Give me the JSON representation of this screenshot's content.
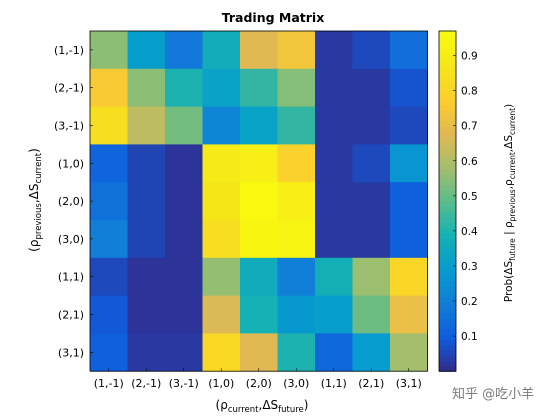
{
  "chart_data": {
    "type": "heatmap",
    "title": "Trading Matrix",
    "xlabel_prefix": "(ρ",
    "xlabel_sub1": "current",
    "xlabel_mid": ",ΔS",
    "xlabel_sub2": "future",
    "xlabel_suffix": ")",
    "ylabel_prefix": "(ρ",
    "ylabel_sub1": "previous",
    "ylabel_mid": ",ΔS",
    "ylabel_sub2": "current",
    "ylabel_suffix": ")",
    "colorbar_label_prefix": "Prob(ΔS",
    "colorbar_label_sub1": "future",
    "colorbar_label_mid1": " | ρ",
    "colorbar_label_sub2": "previous",
    "colorbar_label_mid2": ",ρ",
    "colorbar_label_sub3": "current",
    "colorbar_label_mid3": ",ΔS",
    "colorbar_label_sub4": "current",
    "colorbar_label_suffix": ")",
    "x_categories": [
      "(1,-1)",
      "(2,-1)",
      "(3,-1)",
      "(1,0)",
      "(2,0)",
      "(3,0)",
      "(1,1)",
      "(2,1)",
      "(3,1)"
    ],
    "y_categories": [
      "(1,-1)",
      "(2,-1)",
      "(3,-1)",
      "(1,0)",
      "(2,0)",
      "(3,0)",
      "(1,1)",
      "(2,1)",
      "(3,1)"
    ],
    "values": [
      [
        0.55,
        0.3,
        0.18,
        0.37,
        0.68,
        0.74,
        0.03,
        0.06,
        0.15
      ],
      [
        0.76,
        0.55,
        0.4,
        0.32,
        0.43,
        0.54,
        0.03,
        0.03,
        0.08
      ],
      [
        0.84,
        0.62,
        0.52,
        0.22,
        0.32,
        0.43,
        0.03,
        0.03,
        0.06
      ],
      [
        0.12,
        0.05,
        0.02,
        0.89,
        0.91,
        0.79,
        0.03,
        0.06,
        0.27
      ],
      [
        0.16,
        0.05,
        0.02,
        0.87,
        0.96,
        0.91,
        0.03,
        0.03,
        0.11
      ],
      [
        0.2,
        0.05,
        0.02,
        0.84,
        0.94,
        0.93,
        0.03,
        0.03,
        0.11
      ],
      [
        0.06,
        0.02,
        0.02,
        0.56,
        0.36,
        0.2,
        0.38,
        0.57,
        0.81
      ],
      [
        0.09,
        0.02,
        0.02,
        0.67,
        0.39,
        0.28,
        0.3,
        0.51,
        0.71
      ],
      [
        0.11,
        0.03,
        0.03,
        0.82,
        0.68,
        0.4,
        0.13,
        0.29,
        0.58
      ]
    ],
    "clim": [
      0.0,
      0.97
    ],
    "colorbar_ticks": [
      "0.1",
      "0.2",
      "0.3",
      "0.4",
      "0.5",
      "0.6",
      "0.7",
      "0.8",
      "0.9"
    ],
    "colormap": "parula"
  },
  "watermark": "知乎 @吃小羊"
}
